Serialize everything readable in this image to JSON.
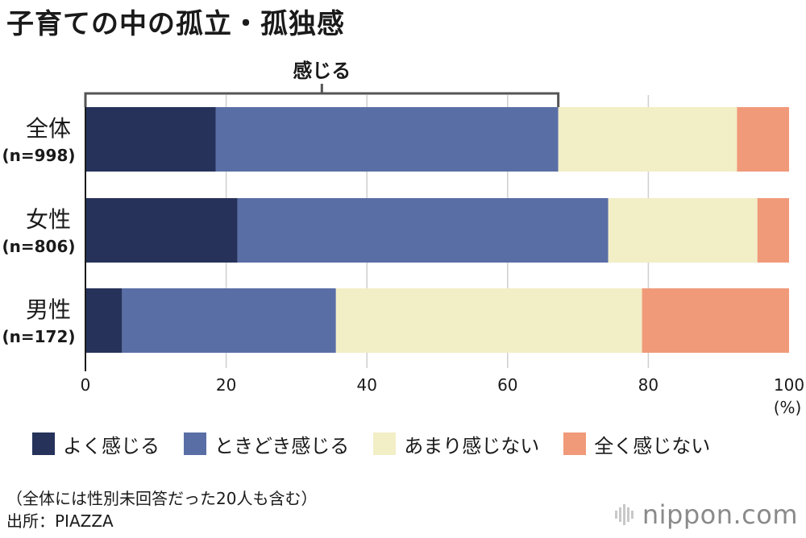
{
  "title": "子育ての中の孤立・孤独感",
  "chart_data": {
    "type": "bar",
    "orientation": "horizontal",
    "stacked": true,
    "title": "子育ての中の孤立・孤独感",
    "categories": [
      {
        "name": "全体",
        "n": "(n=998)"
      },
      {
        "name": "女性",
        "n": "(n=806)"
      },
      {
        "name": "男性",
        "n": "(n=172)"
      }
    ],
    "series": [
      {
        "name": "よく感じる",
        "color": "#26325a",
        "values": [
          18.5,
          21.6,
          5.2
        ]
      },
      {
        "name": "ときどき感じる",
        "color": "#5a6ea6",
        "values": [
          48.7,
          52.7,
          30.4
        ]
      },
      {
        "name": "あまり感じない",
        "color": "#f2eec6",
        "values": [
          25.4,
          21.2,
          43.5
        ]
      },
      {
        "name": "全く感じない",
        "color": "#f09a7a",
        "values": [
          7.4,
          4.5,
          20.9
        ]
      }
    ],
    "xlim": [
      0,
      100
    ],
    "xticks": [
      "0",
      "20",
      "40",
      "60",
      "80",
      "100"
    ],
    "xunit": "(%)",
    "bracket": {
      "label": "感じる",
      "row": 0,
      "series_span": [
        0,
        1
      ]
    },
    "grid": true
  },
  "footnote": {
    "line1": "（全体には性別未回答だった20人も含む）",
    "line2": "出所：PIAZZA"
  },
  "brand": {
    "text": "nippon.com",
    "accent": "#c8c8c8"
  }
}
